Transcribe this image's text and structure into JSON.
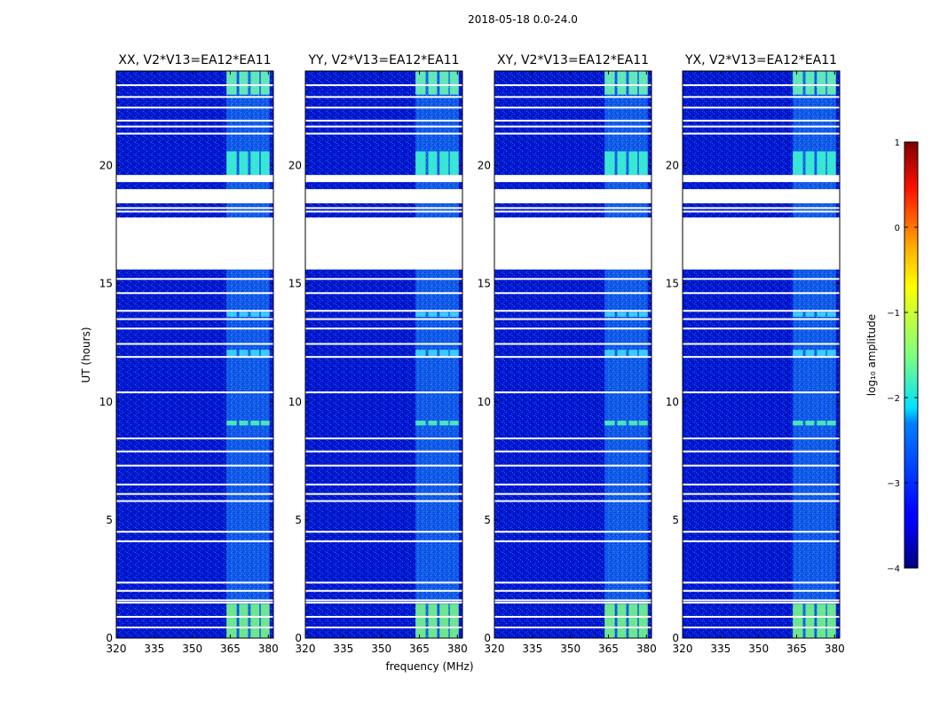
{
  "figure": {
    "title": "2018-05-18 0.0-24.0",
    "xlabel": "frequency (MHz)",
    "ylabel": "UT (hours)",
    "colorbar_label": "log₁₀ amplitude"
  },
  "chart_data": {
    "type": "heatmap",
    "title": "2018-05-18 0.0-24.0",
    "xlabel": "frequency (MHz)",
    "ylabel": "UT (hours)",
    "xlim": [
      320,
      382
    ],
    "ylim": [
      0,
      24
    ],
    "x_ticks": [
      320,
      335,
      350,
      365,
      380
    ],
    "y_ticks": [
      0,
      5,
      10,
      15,
      20
    ],
    "colorbar": {
      "label": "log₁₀ amplitude",
      "range": [
        -4,
        1
      ],
      "ticks": [
        1,
        0,
        -1,
        -2,
        -3,
        -4
      ],
      "tick_labels": [
        "1",
        "0",
        "−1",
        "−2",
        "−3",
        "−4"
      ],
      "colormap": "jet"
    },
    "panels": [
      {
        "name": "XX",
        "title": "XX, V2*V13=EA12*EA11"
      },
      {
        "name": "YY",
        "title": "YY, V2*V13=EA12*EA11"
      },
      {
        "name": "XY",
        "title": "XY, V2*V13=EA12*EA11"
      },
      {
        "name": "YX",
        "title": "YX, V2*V13=EA12*EA11"
      }
    ],
    "data_gaps_ut": [
      [
        15.6,
        17.8
      ],
      [
        18.4,
        19.0
      ],
      [
        19.3,
        19.6
      ]
    ],
    "flagged_lines_ut": [
      0.45,
      0.9,
      1.5,
      1.6,
      2.0,
      2.35,
      4.1,
      4.5,
      5.8,
      6.1,
      6.5,
      7.3,
      7.9,
      8.45,
      10.4,
      11.9,
      12.45,
      13.1,
      13.5,
      13.85,
      14.6,
      15.2,
      18.05,
      18.2,
      21.35,
      21.65,
      21.9,
      22.45,
      22.9,
      23.4
    ],
    "bright_band_mhz": [
      363.5,
      380.5
    ],
    "bright_band_channels_mhz": [
      [
        363.5,
        367.5
      ],
      [
        368.5,
        372
      ],
      [
        373,
        376.5
      ],
      [
        377,
        380.5
      ]
    ]
  }
}
